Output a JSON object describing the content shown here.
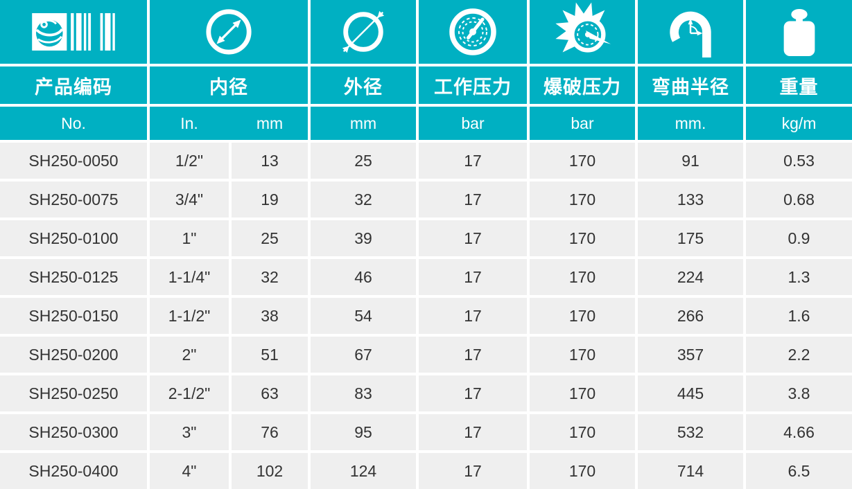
{
  "theme": {
    "teal": "#00b0c2",
    "cell": "#efefef",
    "ink": "#333333"
  },
  "table": {
    "columns": [
      {
        "header": "产品编码",
        "unit": "No.",
        "icon": "logo-barcode-icon"
      },
      {
        "header": "内径",
        "units": [
          "In.",
          "mm"
        ],
        "icon": "inner-diameter-icon"
      },
      {
        "header": "外径",
        "unit": "mm",
        "icon": "outer-diameter-icon"
      },
      {
        "header": "工作压力",
        "unit": "bar",
        "icon": "working-pressure-icon"
      },
      {
        "header": "爆破压力",
        "unit": "bar",
        "icon": "burst-pressure-icon"
      },
      {
        "header": "弯曲半径",
        "unit": "mm.",
        "icon": "bend-radius-icon"
      },
      {
        "header": "重量",
        "unit": "kg/m",
        "icon": "weight-icon"
      }
    ],
    "rows": [
      [
        "SH250-0050",
        "1/2\"",
        "13",
        "25",
        "17",
        "170",
        "91",
        "0.53"
      ],
      [
        "SH250-0075",
        "3/4\"",
        "19",
        "32",
        "17",
        "170",
        "133",
        "0.68"
      ],
      [
        "SH250-0100",
        "1\"",
        "25",
        "39",
        "17",
        "170",
        "175",
        "0.9"
      ],
      [
        "SH250-0125",
        "1-1/4\"",
        "32",
        "46",
        "17",
        "170",
        "224",
        "1.3"
      ],
      [
        "SH250-0150",
        "1-1/2\"",
        "38",
        "54",
        "17",
        "170",
        "266",
        "1.6"
      ],
      [
        "SH250-0200",
        "2\"",
        "51",
        "67",
        "17",
        "170",
        "357",
        "2.2"
      ],
      [
        "SH250-0250",
        "2-1/2\"",
        "63",
        "83",
        "17",
        "170",
        "445",
        "3.8"
      ],
      [
        "SH250-0300",
        "3\"",
        "76",
        "95",
        "17",
        "170",
        "532",
        "4.66"
      ],
      [
        "SH250-0400",
        "4\"",
        "102",
        "124",
        "17",
        "170",
        "714",
        "6.5"
      ]
    ]
  }
}
